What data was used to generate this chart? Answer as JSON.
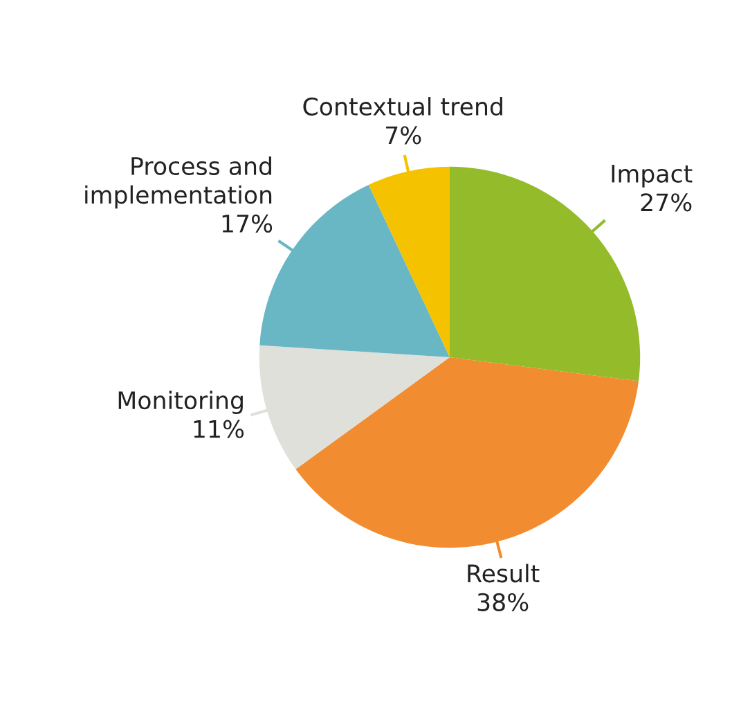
{
  "chart_data": {
    "type": "pie",
    "categories": [
      "Impact",
      "Result",
      "Monitoring",
      "Process and\nimplementation",
      "Contextual trend"
    ],
    "values": [
      27,
      38,
      11,
      17,
      7
    ],
    "colors": [
      "#93bb2a",
      "#f28c30",
      "#e0e0db",
      "#69b7c5",
      "#f5c200"
    ],
    "value_labels": [
      "27%",
      "38%",
      "11%",
      "17%",
      "7%"
    ]
  }
}
